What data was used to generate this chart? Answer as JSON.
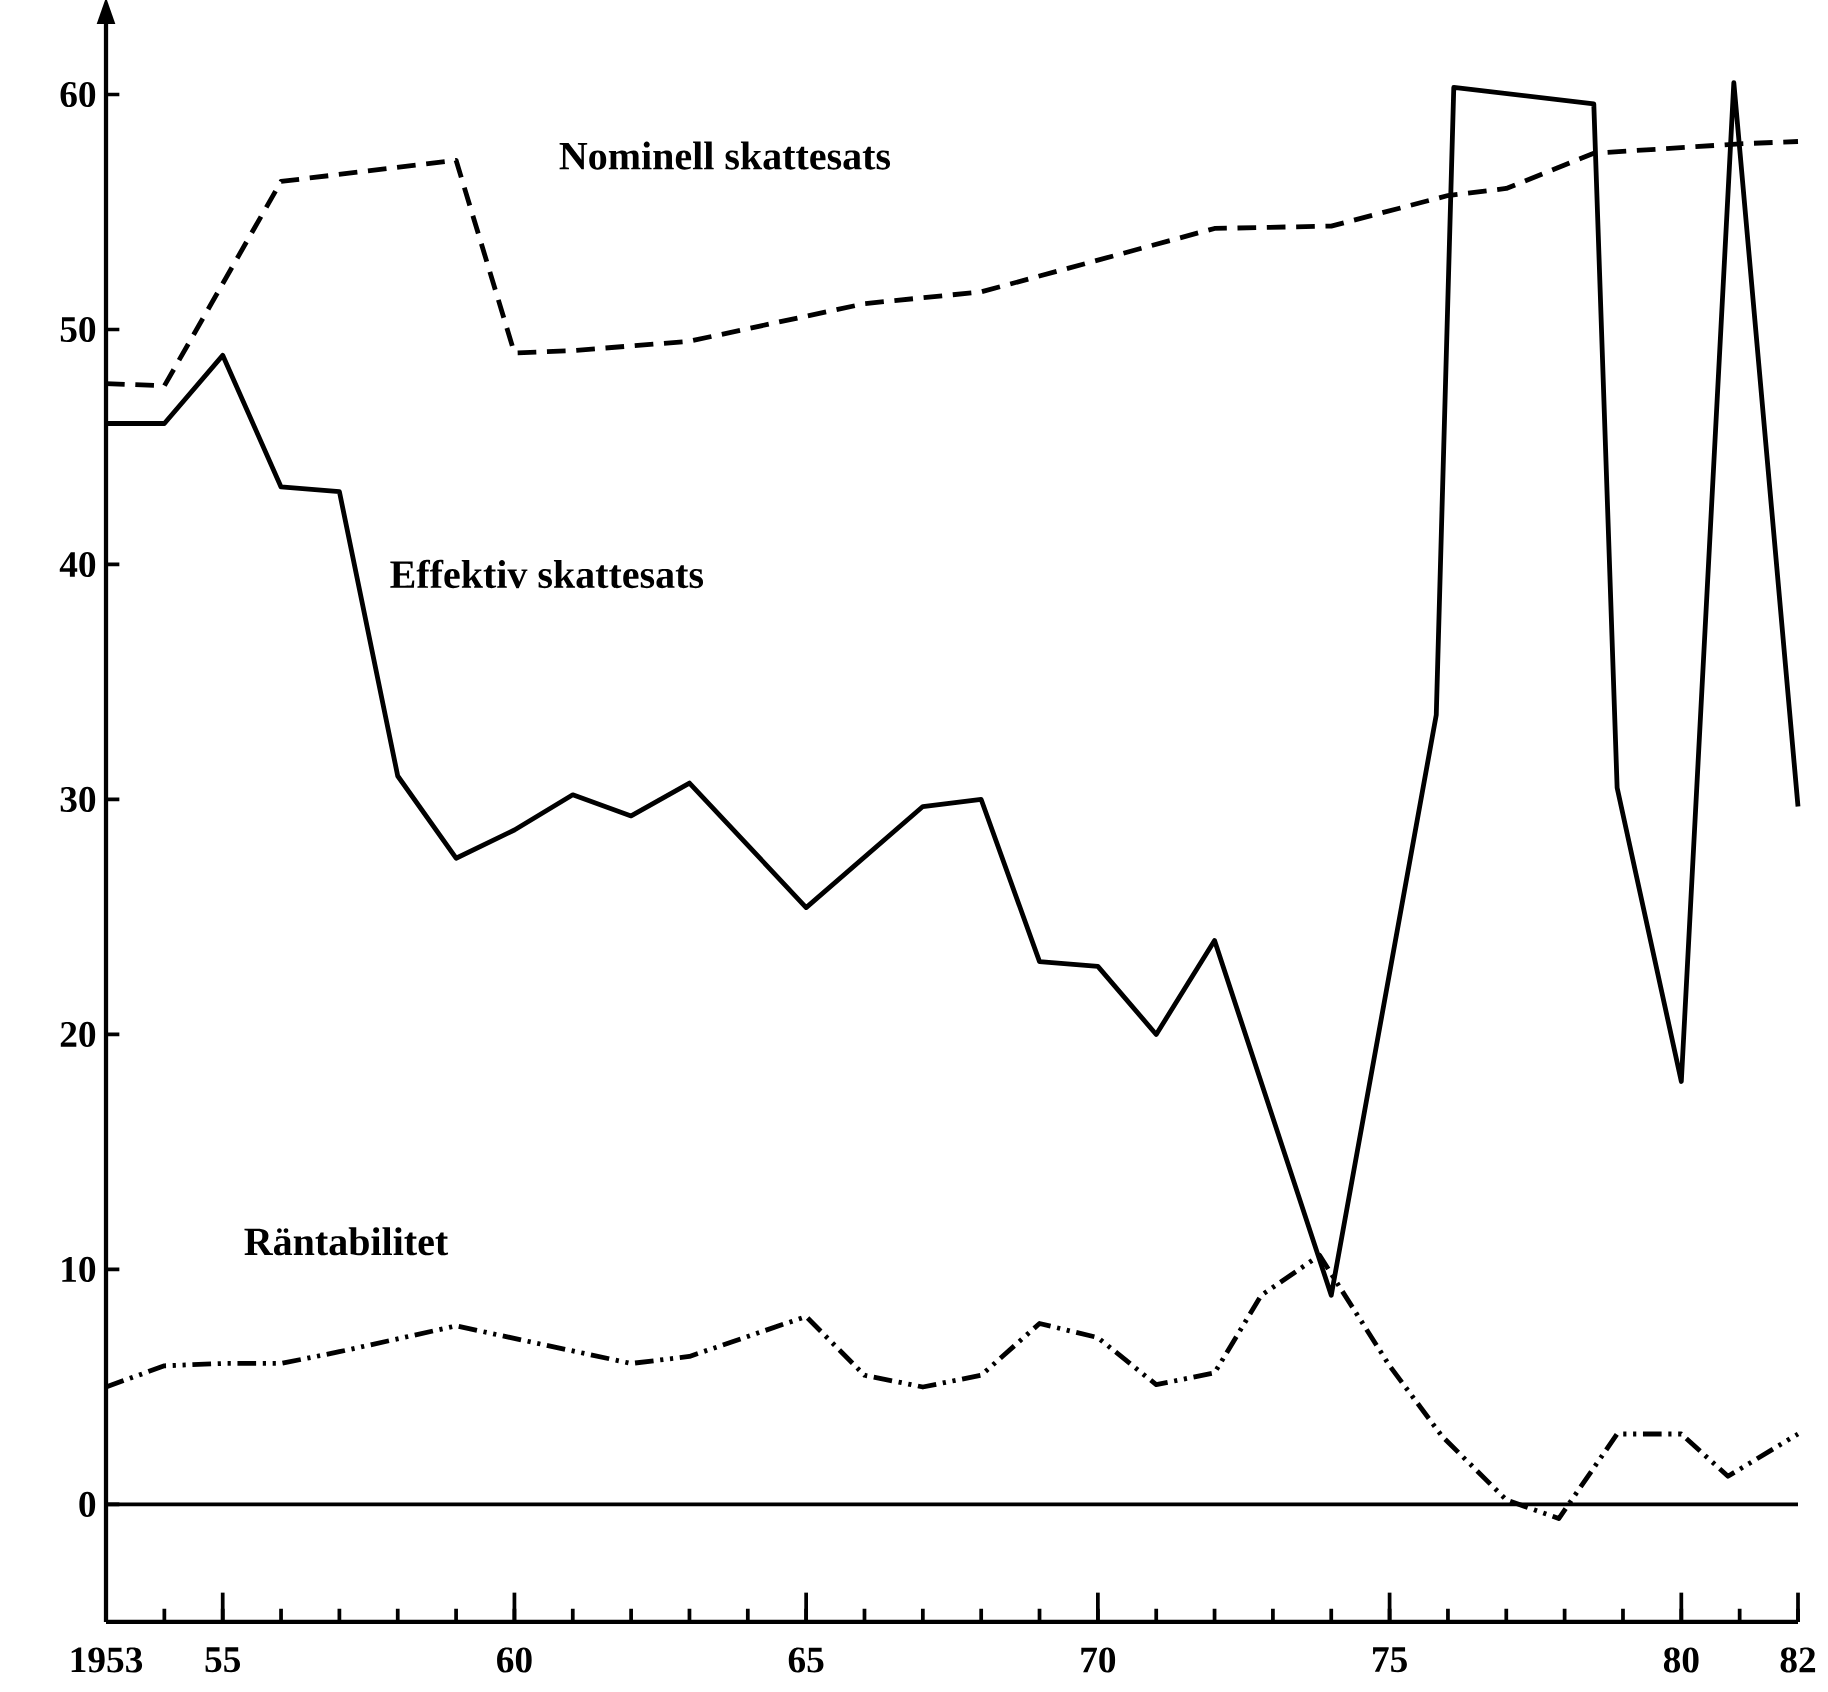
{
  "chart_data": {
    "type": "line",
    "xlim": [
      1953,
      1982
    ],
    "ylim": [
      -5,
      63
    ],
    "xticks": [
      {
        "value": 1953,
        "label": "1953"
      },
      {
        "value": 1954,
        "label": null
      },
      {
        "value": 1955,
        "label": "55"
      },
      {
        "value": 1956,
        "label": null
      },
      {
        "value": 1957,
        "label": null
      },
      {
        "value": 1958,
        "label": null
      },
      {
        "value": 1959,
        "label": null
      },
      {
        "value": 1960,
        "label": "60"
      },
      {
        "value": 1961,
        "label": null
      },
      {
        "value": 1962,
        "label": null
      },
      {
        "value": 1963,
        "label": null
      },
      {
        "value": 1964,
        "label": null
      },
      {
        "value": 1965,
        "label": "65"
      },
      {
        "value": 1966,
        "label": null
      },
      {
        "value": 1967,
        "label": null
      },
      {
        "value": 1968,
        "label": null
      },
      {
        "value": 1969,
        "label": null
      },
      {
        "value": 1970,
        "label": "70"
      },
      {
        "value": 1971,
        "label": null
      },
      {
        "value": 1972,
        "label": null
      },
      {
        "value": 1973,
        "label": null
      },
      {
        "value": 1974,
        "label": null
      },
      {
        "value": 1975,
        "label": "75"
      },
      {
        "value": 1976,
        "label": null
      },
      {
        "value": 1977,
        "label": null
      },
      {
        "value": 1978,
        "label": null
      },
      {
        "value": 1979,
        "label": null
      },
      {
        "value": 1980,
        "label": "80"
      },
      {
        "value": 1981,
        "label": null
      },
      {
        "value": 1982,
        "label": "82"
      }
    ],
    "yticks": [
      0,
      10,
      20,
      30,
      40,
      50,
      60
    ],
    "ref_lines": [
      {
        "axis": "y",
        "value": 0,
        "color": "#000000"
      }
    ],
    "series": [
      {
        "name": "Nominell skattesats",
        "color": "#000000",
        "line_style": "dashed",
        "x": [
          1953,
          1954,
          1956,
          1959,
          1960,
          1961,
          1963,
          1966,
          1968,
          1972,
          1974,
          1976,
          1977,
          1978.5,
          1981,
          1982
        ],
        "values": [
          47.7,
          47.6,
          56.3,
          57.2,
          49.0,
          49.1,
          49.5,
          51.1,
          51.6,
          54.3,
          54.4,
          55.7,
          56.0,
          57.5,
          57.9,
          58.0
        ]
      },
      {
        "name": "Effektiv skattesats",
        "color": "#000000",
        "line_style": "solid",
        "x": [
          1953,
          1954,
          1955,
          1956,
          1957,
          1958,
          1959,
          1960,
          1961,
          1962,
          1963,
          1965,
          1967,
          1968,
          1969,
          1970,
          1971,
          1972,
          1974,
          1975.8,
          1976.1,
          1978.5,
          1978.9,
          1980,
          1980.9,
          1982
        ],
        "values": [
          46.0,
          46.0,
          48.9,
          43.3,
          43.1,
          31.0,
          27.5,
          28.7,
          30.2,
          29.3,
          30.7,
          25.4,
          29.7,
          30.0,
          23.1,
          22.9,
          20.0,
          24.0,
          8.9,
          33.6,
          60.3,
          59.6,
          30.5,
          18.0,
          60.5,
          29.7
        ]
      },
      {
        "name": "Räntabilitet",
        "color": "#000000",
        "line_style": "dashdotted",
        "x": [
          1953,
          1954,
          1955,
          1956,
          1957,
          1959,
          1962,
          1963,
          1965,
          1966,
          1967,
          1968,
          1969,
          1970,
          1971,
          1972,
          1972.8,
          1973.8,
          1975,
          1975.9,
          1977,
          1977.9,
          1978.9,
          1980,
          1980.8,
          1982
        ],
        "values": [
          5.0,
          5.9,
          6.0,
          6.0,
          6.5,
          7.6,
          6.0,
          6.3,
          8.0,
          5.5,
          5.0,
          5.5,
          7.7,
          7.1,
          5.1,
          5.6,
          8.9,
          10.6,
          5.9,
          2.9,
          0.2,
          -0.6,
          3.0,
          3.0,
          1.2,
          3.0
        ]
      }
    ]
  }
}
